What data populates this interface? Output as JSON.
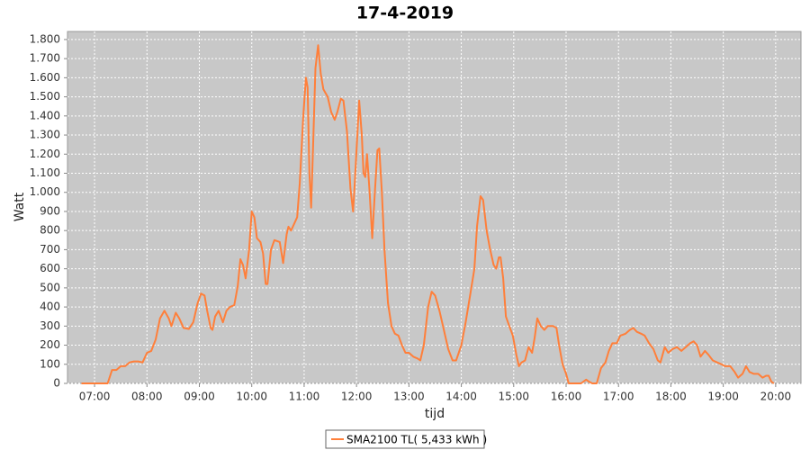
{
  "chart_data": {
    "type": "line",
    "title": "17-4-2019",
    "x_label": "tijd",
    "y_label": "Watt",
    "x": [
      "06:45",
      "07:00",
      "07:10",
      "07:15",
      "07:20",
      "07:25",
      "07:30",
      "07:35",
      "07:40",
      "07:45",
      "07:50",
      "07:55",
      "08:00",
      "08:05",
      "08:10",
      "08:15",
      "08:20",
      "08:25",
      "08:28",
      "08:33",
      "08:37",
      "08:42",
      "08:48",
      "08:53",
      "08:58",
      "09:02",
      "09:06",
      "09:09",
      "09:13",
      "09:15",
      "09:18",
      "09:22",
      "09:27",
      "09:31",
      "09:35",
      "09:40",
      "09:44",
      "09:47",
      "09:50",
      "09:53",
      "09:57",
      "10:00",
      "10:03",
      "10:06",
      "10:10",
      "10:13",
      "10:16",
      "10:18",
      "10:22",
      "10:26",
      "10:32",
      "10:36",
      "10:40",
      "10:42",
      "10:45",
      "10:49",
      "10:52",
      "10:55",
      "10:59",
      "11:02",
      "11:04",
      "11:06",
      "11:08",
      "11:10",
      "11:13",
      "11:16",
      "11:19",
      "11:22",
      "11:27",
      "11:31",
      "11:35",
      "11:38",
      "11:42",
      "11:45",
      "11:49",
      "11:53",
      "11:56",
      "11:58",
      "12:03",
      "12:06",
      "12:08",
      "12:10",
      "12:12",
      "12:15",
      "12:18",
      "12:21",
      "12:24",
      "12:26",
      "12:29",
      "12:32",
      "12:36",
      "12:40",
      "12:44",
      "12:48",
      "12:52",
      "12:56",
      "13:00",
      "13:05",
      "13:10",
      "13:13",
      "13:17",
      "13:22",
      "13:26",
      "13:30",
      "13:35",
      "13:40",
      "13:45",
      "13:50",
      "13:54",
      "14:00",
      "14:05",
      "14:10",
      "14:15",
      "14:18",
      "14:22",
      "14:25",
      "14:29",
      "14:33",
      "14:37",
      "14:40",
      "14:43",
      "14:45",
      "14:48",
      "14:51",
      "14:55",
      "14:59",
      "15:03",
      "15:06",
      "15:09",
      "15:13",
      "15:17",
      "15:21",
      "15:24",
      "15:27",
      "15:31",
      "15:35",
      "15:39",
      "15:45",
      "15:49",
      "15:52",
      "15:56",
      "16:00",
      "16:03",
      "16:10",
      "16:17",
      "16:23",
      "16:26",
      "16:30",
      "16:35",
      "16:40",
      "16:45",
      "16:49",
      "16:53",
      "16:58",
      "17:02",
      "17:08",
      "17:13",
      "17:17",
      "17:21",
      "17:26",
      "17:30",
      "17:35",
      "17:40",
      "17:45",
      "17:48",
      "17:53",
      "17:57",
      "18:02",
      "18:07",
      "18:12",
      "18:17",
      "18:22",
      "18:26",
      "18:30",
      "18:34",
      "18:39",
      "18:43",
      "18:48",
      "18:53",
      "18:58",
      "19:02",
      "19:08",
      "19:13",
      "19:17",
      "19:22",
      "19:26",
      "19:30",
      "19:35",
      "19:40",
      "19:45",
      "19:49",
      "19:52",
      "19:55",
      "19:58"
    ],
    "series": [
      {
        "name": "SMA2100 TL( 5,433 kWh )",
        "color": "#ff7f3a",
        "values": [
          0,
          0,
          0,
          0,
          70,
          70,
          90,
          90,
          110,
          115,
          115,
          110,
          160,
          170,
          230,
          340,
          380,
          340,
          300,
          370,
          340,
          290,
          285,
          320,
          420,
          470,
          460,
          380,
          290,
          280,
          350,
          380,
          320,
          380,
          400,
          410,
          510,
          650,
          620,
          550,
          700,
          900,
          870,
          760,
          740,
          680,
          520,
          520,
          700,
          750,
          740,
          630,
          780,
          820,
          800,
          840,
          870,
          1050,
          1400,
          1600,
          1550,
          1100,
          920,
          1200,
          1650,
          1770,
          1620,
          1540,
          1500,
          1420,
          1380,
          1420,
          1490,
          1480,
          1320,
          1020,
          900,
          1050,
          1480,
          1300,
          1100,
          1080,
          1200,
          1000,
          760,
          1000,
          1220,
          1230,
          1000,
          700,
          420,
          300,
          260,
          250,
          200,
          160,
          160,
          140,
          130,
          120,
          200,
          400,
          480,
          460,
          380,
          280,
          180,
          120,
          120,
          200,
          320,
          460,
          600,
          820,
          980,
          960,
          800,
          700,
          620,
          600,
          660,
          660,
          550,
          350,
          300,
          250,
          150,
          90,
          110,
          120,
          190,
          160,
          240,
          340,
          300,
          280,
          300,
          300,
          290,
          200,
          100,
          50,
          0,
          0,
          0,
          20,
          10,
          0,
          0,
          80,
          110,
          170,
          210,
          210,
          250,
          260,
          280,
          290,
          270,
          260,
          250,
          210,
          180,
          120,
          110,
          190,
          160,
          180,
          190,
          170,
          190,
          210,
          220,
          200,
          140,
          170,
          150,
          120,
          110,
          100,
          90,
          90,
          60,
          30,
          50,
          90,
          60,
          50,
          50,
          30,
          40,
          40,
          10,
          0
        ]
      }
    ],
    "xlim": [
      "06:29",
      "20:29"
    ],
    "xticks": [
      "07:00",
      "08:00",
      "09:00",
      "10:00",
      "11:00",
      "12:00",
      "13:00",
      "14:00",
      "15:00",
      "16:00",
      "17:00",
      "18:00",
      "19:00",
      "20:00"
    ],
    "ylim": [
      0,
      1842
    ],
    "yticks": [
      0,
      100,
      200,
      300,
      400,
      500,
      600,
      700,
      800,
      900,
      {
        "value": 1000,
        "label": "1.000"
      },
      {
        "value": 1100,
        "label": "1.100"
      },
      {
        "value": 1200,
        "label": "1.200"
      },
      {
        "value": 1300,
        "label": "1.300"
      },
      {
        "value": 1400,
        "label": "1.400"
      },
      {
        "value": 1500,
        "label": "1.500"
      },
      {
        "value": 1600,
        "label": "1.600"
      },
      {
        "value": 1700,
        "label": "1.700"
      },
      {
        "value": 1800,
        "label": "1.800"
      }
    ],
    "grid": true
  }
}
